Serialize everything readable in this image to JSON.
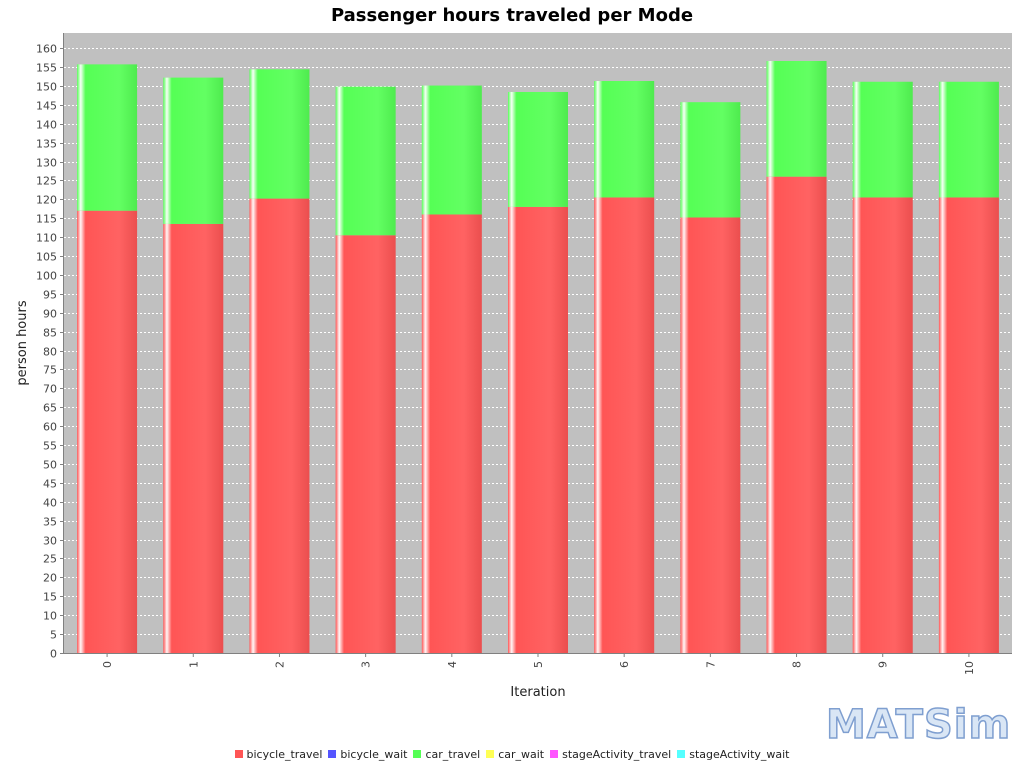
{
  "chart_data": {
    "type": "bar",
    "stacked": true,
    "title": "Passenger hours traveled per Mode",
    "xlabel": "Iteration",
    "ylabel": "person hours",
    "ylim": [
      0,
      164
    ],
    "ytick_step": 5,
    "grid": true,
    "legend_position": "bottom",
    "categories": [
      "0",
      "1",
      "2",
      "3",
      "4",
      "5",
      "6",
      "7",
      "8",
      "9",
      "10"
    ],
    "series": [
      {
        "name": "bicycle_travel",
        "color": "#ff5555",
        "values": [
          117,
          113.5,
          120.2,
          110.5,
          116,
          118,
          120.5,
          115.2,
          126,
          120.5,
          120.5
        ]
      },
      {
        "name": "bicycle_wait",
        "color": "#5555ff",
        "values": [
          0,
          0,
          0,
          0,
          0,
          0,
          0,
          0,
          0,
          0,
          0
        ]
      },
      {
        "name": "car_travel",
        "color": "#55ff55",
        "values": [
          38.7,
          38.7,
          34.2,
          39.3,
          34.1,
          30.4,
          30.8,
          30.5,
          30.6,
          30.6,
          30.6
        ]
      },
      {
        "name": "car_wait",
        "color": "#ffff55",
        "values": [
          0,
          0,
          0,
          0,
          0,
          0,
          0,
          0,
          0,
          0,
          0
        ]
      },
      {
        "name": "stageActivity_travel",
        "color": "#ff55ff",
        "values": [
          0,
          0,
          0,
          0,
          0,
          0,
          0,
          0,
          0,
          0,
          0
        ]
      },
      {
        "name": "stageActivity_wait",
        "color": "#55ffff",
        "values": [
          0,
          0,
          0,
          0,
          0,
          0,
          0,
          0,
          0,
          0,
          0
        ]
      }
    ]
  },
  "logo": {
    "text": "MATSim"
  }
}
